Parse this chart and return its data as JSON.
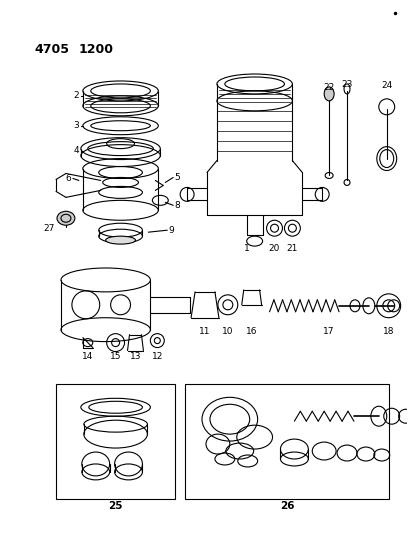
{
  "bg_color": "#ffffff",
  "line_color": "#000000",
  "title1": "4705",
  "title2": "1200",
  "fig_w": 4.08,
  "fig_h": 5.33,
  "dpi": 100
}
